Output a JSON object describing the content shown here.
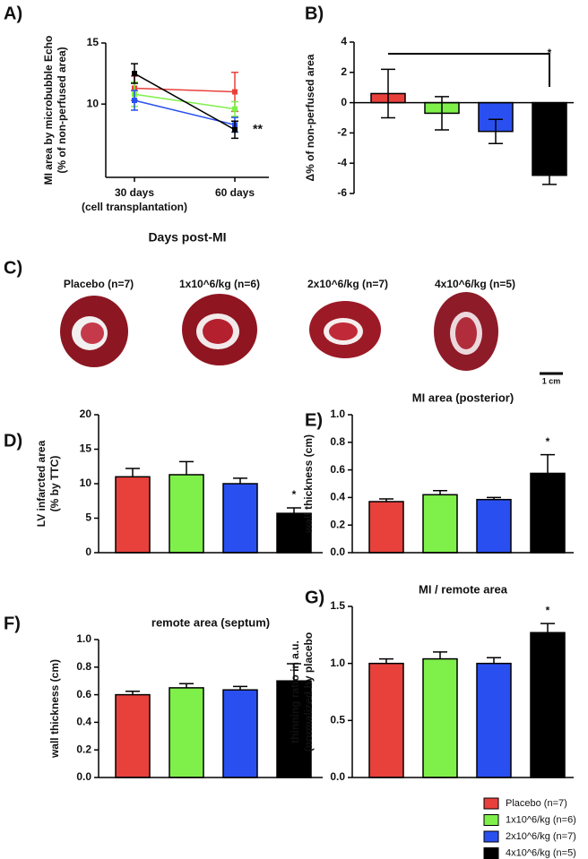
{
  "chart_data": [
    {
      "panel": "A)",
      "type": "line",
      "ylabel": [
        "MI area by microbubble Echo",
        "(% of non-perfused area)"
      ],
      "categories": [
        "30 days",
        "60 days"
      ],
      "category_note": "(cell transplantation)",
      "xlabel": "Days post-MI",
      "ylim": [
        4,
        15
      ],
      "yticks": [
        10,
        15
      ],
      "annotation": "**",
      "series": [
        {
          "name": "Placebo (n=7)",
          "color": "#e8413c",
          "values": [
            11.3,
            11.0
          ],
          "errors": [
            1.0,
            1.6
          ]
        },
        {
          "name": "1x10^6/kg (n=6)",
          "color": "#7ff04a",
          "values": [
            10.8,
            9.6
          ],
          "errors": [
            1.0,
            0.6
          ]
        },
        {
          "name": "2x10^6/kg (n=7)",
          "color": "#2a4ff0",
          "values": [
            10.3,
            8.3
          ],
          "errors": [
            0.8,
            0.6
          ]
        },
        {
          "name": "4x10^6/kg (n=5)",
          "color": "#000000",
          "values": [
            12.5,
            7.9
          ],
          "errors": [
            0.8,
            0.7
          ]
        }
      ]
    },
    {
      "panel": "B)",
      "type": "bar",
      "ylabel": [
        "Δ% of non-perfused area"
      ],
      "ylim": [
        -6,
        4
      ],
      "yticks": [
        -6,
        -4,
        -2,
        0,
        2,
        4
      ],
      "values": [
        0.6,
        -0.7,
        -1.9,
        -4.8
      ],
      "errors": [
        1.6,
        1.1,
        0.8,
        0.6
      ],
      "error_direction": "both",
      "colors": [
        "#e8413c",
        "#7ff04a",
        "#2a4ff0",
        "#000000"
      ],
      "annotation": "*"
    },
    {
      "panel": "D)",
      "type": "bar",
      "ylabel": [
        "LV infarcted area",
        "(% by TTC)"
      ],
      "ylim": [
        0,
        20
      ],
      "yticks": [
        0,
        5,
        10,
        15,
        20
      ],
      "values": [
        11.0,
        11.3,
        10.0,
        5.7
      ],
      "errors": [
        1.2,
        1.9,
        0.8,
        0.8
      ],
      "error_direction": "outward",
      "colors": [
        "#e8413c",
        "#7ff04a",
        "#2a4ff0",
        "#000000"
      ],
      "annotation": "*"
    },
    {
      "panel": "E)",
      "type": "bar",
      "title": "MI area (posterior)",
      "ylabel": [
        "wall thickness (cm)"
      ],
      "ylim": [
        0,
        1
      ],
      "yticks": [
        {
          "value": 0,
          "label": "0.0"
        },
        0.2,
        0.4,
        0.6,
        0.8,
        {
          "value": 1,
          "label": "1.0"
        }
      ],
      "values": [
        0.37,
        0.42,
        0.385,
        0.575
      ],
      "errors": [
        0.02,
        0.03,
        0.015,
        0.135
      ],
      "error_direction": "outward",
      "colors": [
        "#e8413c",
        "#7ff04a",
        "#2a4ff0",
        "#000000"
      ],
      "annotation": "*"
    },
    {
      "panel": "F)",
      "type": "bar",
      "title": "remote area (septum)",
      "ylabel": [
        "wall thickness (cm)"
      ],
      "ylim": [
        0,
        1
      ],
      "yticks": [
        {
          "value": 0,
          "label": "0.0"
        },
        0.2,
        0.4,
        0.6,
        0.8,
        {
          "value": 1,
          "label": "1.0"
        }
      ],
      "values": [
        0.6,
        0.65,
        0.635,
        0.7
      ],
      "errors": [
        0.025,
        0.03,
        0.025,
        0.125
      ],
      "error_direction": "outward",
      "colors": [
        "#e8413c",
        "#7ff04a",
        "#2a4ff0",
        "#000000"
      ]
    },
    {
      "panel": "G)",
      "type": "bar",
      "title": "MI / remote area",
      "ylabel": [
        "thinning ratio in a.u.",
        "(normalized by placebo"
      ],
      "ylim": [
        0,
        1.5
      ],
      "yticks": [
        {
          "value": 0,
          "label": "0.0"
        },
        0.5,
        {
          "value": 1,
          "label": "1.0"
        },
        1.5
      ],
      "values": [
        1.0,
        1.04,
        1.0,
        1.27
      ],
      "errors": [
        0.04,
        0.06,
        0.05,
        0.08
      ],
      "error_direction": "outward",
      "colors": [
        "#e8413c",
        "#7ff04a",
        "#2a4ff0",
        "#000000"
      ],
      "annotation": "*"
    }
  ],
  "panel_c": {
    "panel": "C)",
    "labels": [
      "Placebo (n=7)",
      "1x10^6/kg (n=6)",
      "2x10^6/kg (n=7)",
      "4x10^6/kg (n=5)"
    ],
    "scale_bar": "1 cm"
  }
}
